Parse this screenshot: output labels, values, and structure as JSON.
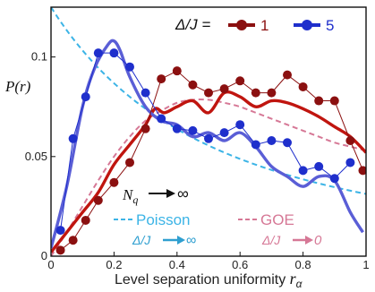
{
  "chart_data": {
    "type": "line",
    "xlabel": "Level separation uniformity ",
    "xlabel_symbol": "r",
    "xlabel_sub": "α",
    "ylabel": "P(r)",
    "xlim": [
      0,
      1
    ],
    "ylim": [
      0,
      0.125
    ],
    "x_ticks": [
      {
        "value": 0,
        "label": "0"
      },
      {
        "value": 0.2,
        "label": "0.2"
      },
      {
        "value": 0.4,
        "label": "0.4"
      },
      {
        "value": 0.6,
        "label": "0.6"
      },
      {
        "value": 0.8,
        "label": "0.8"
      },
      {
        "value": 1,
        "label": "1"
      }
    ],
    "y_ticks": [
      {
        "value": 0,
        "label": "0"
      },
      {
        "value": 0.05,
        "label": "0.05"
      },
      {
        "value": 0.1,
        "label": "0.1"
      }
    ],
    "legend": {
      "title": "Δ/J =",
      "entries": [
        {
          "label": "1",
          "color": "#8b1010"
        },
        {
          "label": "5",
          "color": "#1f2fcc"
        }
      ]
    },
    "series": [
      {
        "name": "Δ/J = 1",
        "kind": "markers",
        "color": "#8b1010",
        "points": [
          [
            0.03,
            0.003
          ],
          [
            0.07,
            0.008
          ],
          [
            0.11,
            0.018
          ],
          [
            0.15,
            0.028
          ],
          [
            0.2,
            0.037
          ],
          [
            0.25,
            0.047
          ],
          [
            0.3,
            0.064
          ],
          [
            0.35,
            0.089
          ],
          [
            0.4,
            0.093
          ],
          [
            0.45,
            0.086
          ],
          [
            0.5,
            0.082
          ],
          [
            0.55,
            0.084
          ],
          [
            0.6,
            0.088
          ],
          [
            0.65,
            0.082
          ],
          [
            0.7,
            0.082
          ],
          [
            0.75,
            0.091
          ],
          [
            0.8,
            0.085
          ],
          [
            0.85,
            0.078
          ],
          [
            0.9,
            0.078
          ],
          [
            0.95,
            0.058
          ],
          [
            0.99,
            0.043
          ]
        ]
      },
      {
        "name": "Δ/J = 5",
        "kind": "markers",
        "color": "#1f2fcc",
        "points": [
          [
            0.03,
            0.013
          ],
          [
            0.07,
            0.059
          ],
          [
            0.11,
            0.08
          ],
          [
            0.15,
            0.102
          ],
          [
            0.2,
            0.102
          ],
          [
            0.25,
            0.095
          ],
          [
            0.3,
            0.082
          ],
          [
            0.35,
            0.069
          ],
          [
            0.4,
            0.064
          ],
          [
            0.45,
            0.063
          ],
          [
            0.5,
            0.059
          ],
          [
            0.55,
            0.062
          ],
          [
            0.6,
            0.066
          ],
          [
            0.65,
            0.056
          ],
          [
            0.7,
            0.058
          ],
          [
            0.75,
            0.057
          ],
          [
            0.8,
            0.043
          ],
          [
            0.85,
            0.045
          ],
          [
            0.9,
            0.039
          ],
          [
            0.95,
            0.047
          ]
        ]
      },
      {
        "name": "Δ/J = 1, Nq → ∞",
        "kind": "smooth",
        "color": "#c0150f",
        "points": [
          [
            0,
            0.002
          ],
          [
            0.05,
            0.012
          ],
          [
            0.1,
            0.022
          ],
          [
            0.15,
            0.032
          ],
          [
            0.2,
            0.046
          ],
          [
            0.25,
            0.056
          ],
          [
            0.3,
            0.066
          ],
          [
            0.33,
            0.074
          ],
          [
            0.36,
            0.072
          ],
          [
            0.4,
            0.075
          ],
          [
            0.45,
            0.078
          ],
          [
            0.5,
            0.072
          ],
          [
            0.55,
            0.082
          ],
          [
            0.6,
            0.08
          ],
          [
            0.65,
            0.075
          ],
          [
            0.7,
            0.078
          ],
          [
            0.75,
            0.077
          ],
          [
            0.8,
            0.074
          ],
          [
            0.85,
            0.07
          ],
          [
            0.9,
            0.065
          ],
          [
            0.95,
            0.06
          ],
          [
            1.0,
            0.052
          ]
        ]
      },
      {
        "name": "Δ/J = 5, Nq → ∞",
        "kind": "smooth",
        "color": "#5a5ed6",
        "points": [
          [
            0,
            0.004
          ],
          [
            0.05,
            0.035
          ],
          [
            0.1,
            0.075
          ],
          [
            0.14,
            0.095
          ],
          [
            0.18,
            0.106
          ],
          [
            0.2,
            0.108
          ],
          [
            0.22,
            0.103
          ],
          [
            0.25,
            0.09
          ],
          [
            0.3,
            0.075
          ],
          [
            0.35,
            0.068
          ],
          [
            0.4,
            0.066
          ],
          [
            0.45,
            0.06
          ],
          [
            0.5,
            0.062
          ],
          [
            0.55,
            0.058
          ],
          [
            0.6,
            0.062
          ],
          [
            0.65,
            0.055
          ],
          [
            0.7,
            0.045
          ],
          [
            0.75,
            0.04
          ],
          [
            0.8,
            0.035
          ],
          [
            0.85,
            0.04
          ],
          [
            0.9,
            0.038
          ],
          [
            0.95,
            0.022
          ],
          [
            0.99,
            0.012
          ]
        ]
      },
      {
        "name": "Poisson",
        "kind": "dashed",
        "color": "#3cb4e6",
        "formula": "2/(1+r)^2",
        "scale": 0.0625
      },
      {
        "name": "GOE",
        "kind": "dashed",
        "color": "#d67896",
        "points": [
          [
            0,
            0.0
          ],
          [
            0.05,
            0.012
          ],
          [
            0.1,
            0.025
          ],
          [
            0.15,
            0.038
          ],
          [
            0.2,
            0.05
          ],
          [
            0.25,
            0.06
          ],
          [
            0.3,
            0.068
          ],
          [
            0.35,
            0.073
          ],
          [
            0.4,
            0.077
          ],
          [
            0.45,
            0.0785
          ],
          [
            0.5,
            0.0785
          ],
          [
            0.55,
            0.077
          ],
          [
            0.6,
            0.075
          ],
          [
            0.65,
            0.072
          ],
          [
            0.7,
            0.069
          ],
          [
            0.75,
            0.066
          ],
          [
            0.8,
            0.063
          ],
          [
            0.85,
            0.06
          ],
          [
            0.9,
            0.057
          ],
          [
            0.95,
            0.055
          ],
          [
            1.0,
            0.053
          ]
        ]
      }
    ],
    "annotations": {
      "nq_label": "N",
      "nq_sub": "q",
      "nq_arrow_text": "∞",
      "poisson_label": "Poisson",
      "poisson_sub_left": "Δ/J",
      "poisson_sub_right": "∞",
      "goe_label": "GOE",
      "goe_sub_left": "Δ/J",
      "goe_sub_right": "0"
    }
  }
}
